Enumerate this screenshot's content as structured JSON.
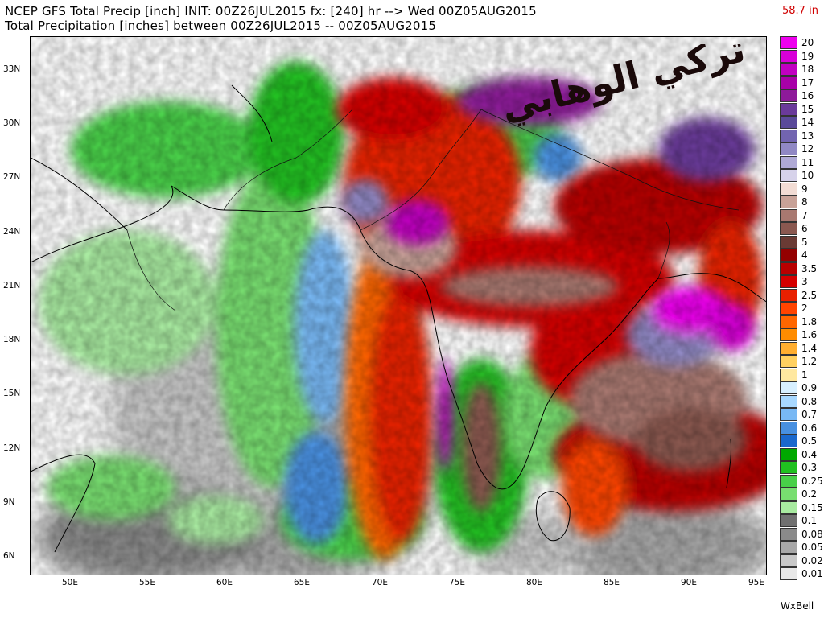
{
  "header": {
    "line1": "NCEP GFS Total Precip [inch] INIT: 00Z26JUL2015 fx: [240] hr --> Wed 00Z05AUG2015",
    "line2": "Total Precipitation [inches] between 00Z26JUL2015 -- 00Z05AUG2015",
    "scale_max": "58.7 in"
  },
  "map": {
    "lat_ticks": [
      "33N",
      "30N",
      "27N",
      "24N",
      "21N",
      "18N",
      "15N",
      "12N",
      "9N",
      "6N"
    ],
    "lon_ticks": [
      "50E",
      "55E",
      "60E",
      "65E",
      "70E",
      "75E",
      "80E",
      "85E",
      "90E",
      "95E"
    ],
    "lat_range": [
      4.5,
      34.5
    ],
    "lon_range": [
      47.5,
      95
    ],
    "watermark_text": "تركي الوهابي"
  },
  "legend": {
    "items": [
      {
        "label": "20",
        "color": "#ee00ee"
      },
      {
        "label": "19",
        "color": "#d800d8"
      },
      {
        "label": "18",
        "color": "#c000c0"
      },
      {
        "label": "17",
        "color": "#a800a8"
      },
      {
        "label": "16",
        "color": "#8e1a9a"
      },
      {
        "label": "15",
        "color": "#6a3a9a"
      },
      {
        "label": "14",
        "color": "#5a4a9a"
      },
      {
        "label": "13",
        "color": "#7264b0"
      },
      {
        "label": "12",
        "color": "#9088c4"
      },
      {
        "label": "11",
        "color": "#b0aad6"
      },
      {
        "label": "10",
        "color": "#d6d2ea"
      },
      {
        "label": "9",
        "color": "#f2dcd4"
      },
      {
        "label": "8",
        "color": "#c8a298"
      },
      {
        "label": "7",
        "color": "#a87870"
      },
      {
        "label": "6",
        "color": "#8a5850"
      },
      {
        "label": "5",
        "color": "#6a3a34"
      },
      {
        "label": "4",
        "color": "#940000"
      },
      {
        "label": "3.5",
        "color": "#b80000"
      },
      {
        "label": "3",
        "color": "#d40000"
      },
      {
        "label": "2.5",
        "color": "#e82000"
      },
      {
        "label": "2",
        "color": "#ff4400"
      },
      {
        "label": "1.8",
        "color": "#ff6600"
      },
      {
        "label": "1.6",
        "color": "#ff8c00"
      },
      {
        "label": "1.4",
        "color": "#ffae30"
      },
      {
        "label": "1.2",
        "color": "#ffd060"
      },
      {
        "label": "1",
        "color": "#ffe8a0"
      },
      {
        "label": "0.9",
        "color": "#d8f0ff"
      },
      {
        "label": "0.8",
        "color": "#a8d8ff"
      },
      {
        "label": "0.7",
        "color": "#78b8f4"
      },
      {
        "label": "0.6",
        "color": "#4890e0"
      },
      {
        "label": "0.5",
        "color": "#1a68cc"
      },
      {
        "label": "0.4",
        "color": "#00a800"
      },
      {
        "label": "0.3",
        "color": "#20c020"
      },
      {
        "label": "0.25",
        "color": "#48d048"
      },
      {
        "label": "0.2",
        "color": "#78de70"
      },
      {
        "label": "0.15",
        "color": "#a8eaa0"
      },
      {
        "label": "0.1",
        "color": "#707070"
      },
      {
        "label": "0.08",
        "color": "#8a8a8a"
      },
      {
        "label": "0.05",
        "color": "#a8a8a8"
      },
      {
        "label": "0.02",
        "color": "#c8c8c8"
      },
      {
        "label": "0.01",
        "color": "#e8e8e8"
      }
    ]
  },
  "credit": "WxBell"
}
